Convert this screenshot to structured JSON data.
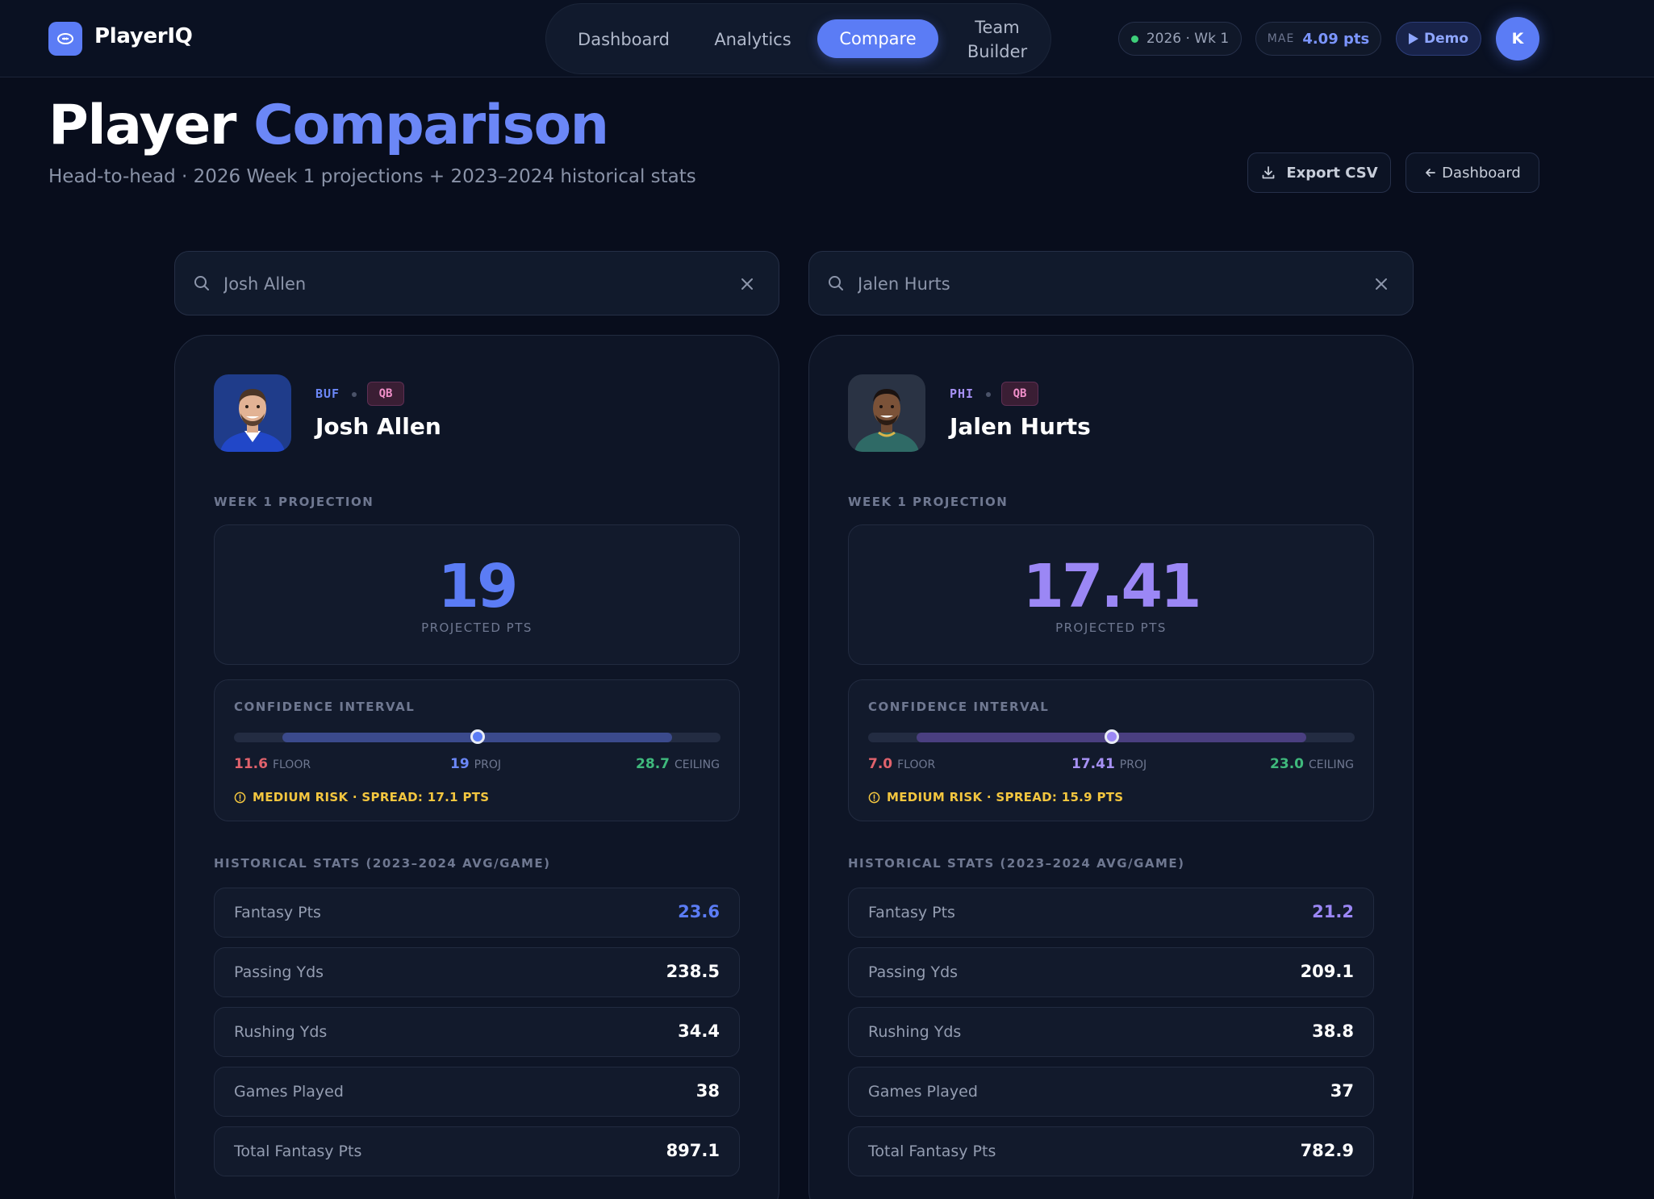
{
  "app": {
    "brand": "PlayerIQ"
  },
  "nav": {
    "dashboard": "Dashboard",
    "analytics": "Analytics",
    "compare": "Compare",
    "team_builder_line1": "Team",
    "team_builder_line2": "Builder"
  },
  "status": {
    "week": "2026 · Wk 1",
    "mae_label": "MAE",
    "mae_value": "4.09 pts",
    "demo": "Demo",
    "avatar_initial": "K"
  },
  "page": {
    "title_word1": "Player",
    "title_word2": "Comparison",
    "subtitle": "Head-to-head · 2026 Week 1 projections + 2023–2024 historical stats",
    "export_label": "Export CSV",
    "dashboard_label": "Dashboard"
  },
  "labels": {
    "week_projection": "WEEK 1 PROJECTION",
    "projected_pts": "PROJECTED PTS",
    "confidence_interval": "CONFIDENCE INTERVAL",
    "floor": "FLOOR",
    "proj": "PROJ",
    "ceiling": "CEILING",
    "historical": "HISTORICAL STATS (2023–2024 AVG/GAME)"
  },
  "colors": {
    "accent": "#5b7cf5",
    "player1_accent": "#5b7cf5",
    "player2_accent": "#9b87f5",
    "floor": "#e0626c",
    "ceiling": "#3fb97c",
    "risk": "#f3c63f"
  },
  "players": [
    {
      "search_value": "Josh Allen",
      "team": "BUF",
      "position": "QB",
      "name": "Josh Allen",
      "projection": "19",
      "floor": "11.6",
      "proj": "19",
      "ceiling": "28.7",
      "floor_num": 11.6,
      "proj_num": 19,
      "ceiling_num": 28.7,
      "risk": "MEDIUM RISK · SPREAD: 17.1 PTS",
      "stats": [
        {
          "label": "Fantasy Pts",
          "value": "23.6"
        },
        {
          "label": "Passing Yds",
          "value": "238.5"
        },
        {
          "label": "Rushing Yds",
          "value": "34.4"
        },
        {
          "label": "Games Played",
          "value": "38"
        },
        {
          "label": "Total Fantasy Pts",
          "value": "897.1"
        }
      ]
    },
    {
      "search_value": "Jalen Hurts",
      "team": "PHI",
      "position": "QB",
      "name": "Jalen Hurts",
      "projection": "17.41",
      "floor": "7.0",
      "proj": "17.41",
      "ceiling": "23.0",
      "floor_num": 7.0,
      "proj_num": 17.41,
      "ceiling_num": 23.0,
      "risk": "MEDIUM RISK · SPREAD: 15.9 PTS",
      "stats": [
        {
          "label": "Fantasy Pts",
          "value": "21.2"
        },
        {
          "label": "Passing Yds",
          "value": "209.1"
        },
        {
          "label": "Rushing Yds",
          "value": "38.8"
        },
        {
          "label": "Games Played",
          "value": "37"
        },
        {
          "label": "Total Fantasy Pts",
          "value": "782.9"
        }
      ]
    }
  ]
}
